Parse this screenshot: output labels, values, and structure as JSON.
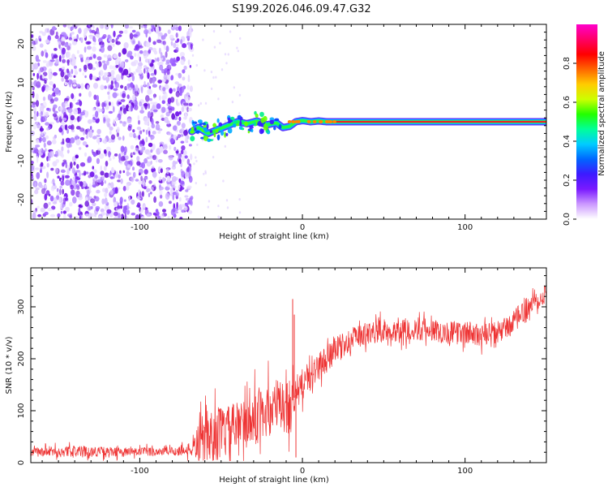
{
  "title": "S199.2026.046.09.47.G32",
  "chart_data": [
    {
      "type": "heatmap",
      "xlabel": "Height of straight line (km)",
      "ylabel": "Frequency (Hz)",
      "xlim": [
        -167,
        150
      ],
      "ylim": [
        -25,
        25
      ],
      "xticks": [
        -100,
        0,
        100
      ],
      "yticks": [
        -20,
        -10,
        0,
        10,
        20
      ],
      "noise_region_x": [
        -167,
        -68
      ],
      "signal_track": {
        "description_points_x": [
          -68,
          -64,
          -58,
          -52,
          -46,
          -40,
          -34,
          -28,
          -22,
          -16,
          -12,
          -8,
          -4,
          0,
          5,
          10,
          15,
          20,
          30,
          60,
          100,
          150
        ],
        "frequency_hz": [
          -2.5,
          -1.5,
          -3.0,
          -2.0,
          -1.0,
          0.0,
          -0.5,
          0.2,
          -0.8,
          -0.3,
          -1.5,
          -1.2,
          0.0,
          0.3,
          0.0,
          0.2,
          0.0,
          0.0,
          0.0,
          0.0,
          0.0,
          0.0
        ]
      },
      "colorbar": {
        "label": "Normalized spectral amplitude",
        "range": [
          0,
          1
        ],
        "ticks": [
          "0.0",
          "0.2",
          "0.4",
          "0.6",
          "0.8"
        ],
        "colors": [
          "#ffffff",
          "#cc99ff",
          "#7a1aff",
          "#3d1aff",
          "#0066ff",
          "#00ccff",
          "#00ff99",
          "#22ff00",
          "#ccff00",
          "#ffcc00",
          "#ff6600",
          "#ff0000",
          "#ff0066",
          "#ff00cc"
        ]
      }
    },
    {
      "type": "line",
      "xlabel": "Height of straight line (km)",
      "ylabel": "SNR (10 * v/v)",
      "xlim": [
        -167,
        150
      ],
      "ylim": [
        0,
        375
      ],
      "xticks": [
        -100,
        0,
        100
      ],
      "yticks": [
        0,
        100,
        200,
        300
      ],
      "series_color": "#ee3333",
      "envelope": {
        "x": [
          -167,
          -140,
          -110,
          -80,
          -68,
          -62,
          -55,
          -45,
          -35,
          -25,
          -15,
          -10,
          -7,
          -5,
          -2,
          0,
          5,
          10,
          20,
          30,
          40,
          50,
          60,
          70,
          80,
          90,
          100,
          110,
          120,
          130,
          140,
          150
        ],
        "mean": [
          20,
          22,
          20,
          22,
          25,
          45,
          55,
          60,
          75,
          95,
          110,
          105,
          115,
          125,
          140,
          150,
          165,
          185,
          215,
          235,
          250,
          255,
          255,
          258,
          255,
          250,
          250,
          245,
          250,
          270,
          305,
          330
        ],
        "spread": [
          10,
          12,
          10,
          10,
          15,
          50,
          60,
          55,
          60,
          60,
          60,
          60,
          70,
          40,
          40,
          35,
          30,
          30,
          30,
          25,
          25,
          25,
          25,
          25,
          25,
          25,
          25,
          25,
          25,
          25,
          25,
          25
        ]
      },
      "spikes": [
        {
          "x": -6,
          "y": 315
        },
        {
          "x": -5,
          "y": 285
        },
        {
          "x": -4,
          "y": 10
        }
      ]
    }
  ]
}
